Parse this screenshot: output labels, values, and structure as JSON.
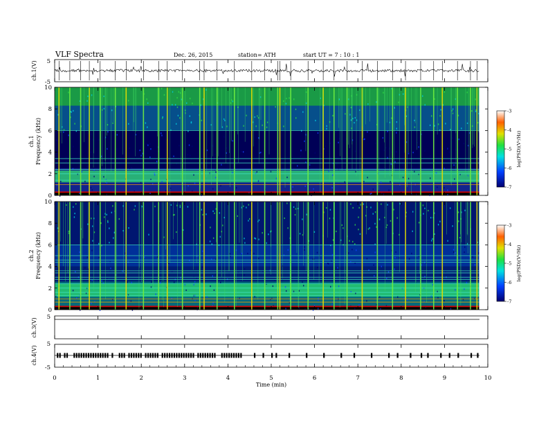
{
  "header": {
    "title": "VLF  Spectra",
    "date": "Dec. 26, 2015",
    "station": "station= ATH",
    "start": "start  UT  =   7  : 10 : 1"
  },
  "colors": {
    "low": "#00007a",
    "mid": "#00e0e0",
    "band": "#20e060",
    "high": "#ffe000",
    "peak": "#e00000",
    "background": "#000000"
  },
  "chart_data": [
    {
      "type": "line",
      "panel": "ch1-waveform",
      "ylabel": "ch.1(V)",
      "ylim": [
        -5,
        5
      ],
      "yticks": [
        "5",
        "-5"
      ],
      "x": [
        0,
        1,
        2,
        3,
        4,
        5,
        6,
        7,
        8,
        9,
        9.8
      ],
      "values": [
        0,
        0,
        0,
        0,
        0,
        0,
        0,
        0,
        0,
        0,
        0
      ]
    },
    {
      "type": "heatmap",
      "panel": "ch1-spectrogram",
      "ylabel_line1": "ch.1",
      "ylabel_line2": "Frequency  (kHz)",
      "ylim": [
        0,
        10
      ],
      "yticks": [
        "0",
        "2",
        "4",
        "6",
        "8",
        "10"
      ],
      "xlim": [
        0,
        10
      ],
      "colorbar": {
        "label": "log(PSD)(V²/Hz)",
        "range": [
          -7,
          -3
        ],
        "ticks": [
          "-3",
          "-4",
          "-5",
          "-6",
          "-7"
        ]
      },
      "bands_khz": [
        0.3,
        1.0,
        1.4,
        2.0,
        2.4,
        3.0,
        3.4,
        6.0
      ],
      "impulses_min": [
        0.1,
        0.35,
        0.6,
        0.8,
        1.05,
        1.4,
        1.65,
        2.05,
        2.4,
        2.6,
        2.95,
        3.35,
        3.45,
        3.75,
        4.15,
        4.55,
        4.85,
        5.15,
        5.2,
        5.45,
        5.85,
        6.2,
        6.45,
        6.75,
        7.1,
        7.45,
        7.8,
        8.1,
        8.45,
        8.75,
        8.95,
        9.3,
        9.6,
        9.75
      ],
      "data_end_min": 9.8
    },
    {
      "type": "heatmap",
      "panel": "ch2-spectrogram",
      "ylabel_line1": "ch.2",
      "ylabel_line2": "Frequency  (kHz)",
      "ylim": [
        0,
        10
      ],
      "yticks": [
        "0",
        "2",
        "4",
        "6",
        "8",
        "10"
      ],
      "xlim": [
        0,
        10
      ],
      "colorbar": {
        "label": "log(PSD)(V²/Hz)",
        "range": [
          -7,
          -3
        ],
        "ticks": [
          "-3",
          "-4",
          "-5",
          "-6",
          "-7"
        ]
      },
      "bands_khz": [
        0.3,
        0.7,
        1.0,
        1.3,
        1.6,
        2.0,
        2.4,
        2.8,
        3.0,
        3.4,
        3.6,
        4.4,
        4.6,
        5.0,
        6.0
      ],
      "impulses_min": [
        0.1,
        0.35,
        0.6,
        0.8,
        1.05,
        1.4,
        1.65,
        2.05,
        2.4,
        2.6,
        2.95,
        3.35,
        3.45,
        3.75,
        4.15,
        4.55,
        4.85,
        5.15,
        5.2,
        5.45,
        5.85,
        6.2,
        6.45,
        6.75,
        7.1,
        7.45,
        7.8,
        8.1,
        8.45,
        8.75,
        8.95,
        9.3,
        9.6,
        9.75
      ],
      "data_end_min": 9.8
    },
    {
      "type": "line",
      "panel": "ch3-waveform",
      "ylabel": "ch.3(V)",
      "ylim": [
        -5,
        5
      ],
      "yticks": [
        "5"
      ],
      "x": [
        0,
        9.8
      ],
      "values": [
        -2.0,
        -2.0
      ]
    },
    {
      "type": "line",
      "panel": "ch4-waveform",
      "ylabel": "ch.4(V)",
      "ylim": [
        -5,
        5
      ],
      "yticks": [
        "5",
        "-5"
      ],
      "x": [
        0,
        9.8
      ],
      "values": [
        0,
        0
      ],
      "pulse_dense_until_min": 4.3,
      "pulses_min": [
        4.6,
        4.8,
        5.0,
        5.1,
        5.4,
        5.8,
        6.2,
        6.6,
        6.9,
        7.3,
        7.7,
        7.9,
        8.2,
        8.45,
        8.6,
        8.9,
        9.1,
        9.3,
        9.6,
        9.75
      ]
    }
  ],
  "xaxis": {
    "label": "Time  (min)",
    "ticks": [
      "0",
      "1",
      "2",
      "3",
      "4",
      "5",
      "6",
      "7",
      "8",
      "9",
      "10"
    ],
    "xlim": [
      0,
      10
    ]
  }
}
